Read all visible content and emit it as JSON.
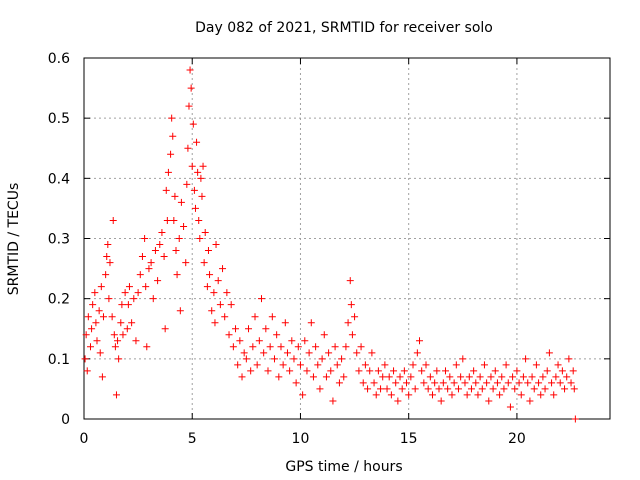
{
  "chart_data": {
    "type": "scatter",
    "title": "Day 082 of 2021, SRMTID for receiver solo",
    "xlabel": "GPS time / hours",
    "ylabel": "SRMTID / TECUs",
    "xlim": [
      0,
      24.3
    ],
    "ylim": [
      0,
      0.6
    ],
    "x_ticks": [
      0,
      5,
      10,
      15,
      20
    ],
    "x_tick_labels": [
      "0",
      "5",
      "10",
      "15",
      "20"
    ],
    "y_ticks": [
      0,
      0.1,
      0.2,
      0.3,
      0.4,
      0.5,
      0.6
    ],
    "y_tick_labels": [
      "0",
      "0.1",
      "0.2",
      "0.3",
      "0.4",
      "0.5",
      "0.6"
    ],
    "grid": true,
    "marker": "plus",
    "color": "#ff0000",
    "series": [
      {
        "name": "SRMTID",
        "points": [
          [
            0.05,
            0.1
          ],
          [
            0.1,
            0.14
          ],
          [
            0.15,
            0.08
          ],
          [
            0.2,
            0.17
          ],
          [
            0.3,
            0.12
          ],
          [
            0.35,
            0.15
          ],
          [
            0.4,
            0.19
          ],
          [
            0.5,
            0.21
          ],
          [
            0.55,
            0.16
          ],
          [
            0.6,
            0.13
          ],
          [
            0.7,
            0.18
          ],
          [
            0.75,
            0.11
          ],
          [
            0.8,
            0.22
          ],
          [
            0.85,
            0.07
          ],
          [
            0.9,
            0.17
          ],
          [
            1.0,
            0.24
          ],
          [
            1.05,
            0.27
          ],
          [
            1.1,
            0.29
          ],
          [
            1.15,
            0.2
          ],
          [
            1.2,
            0.26
          ],
          [
            1.3,
            0.17
          ],
          [
            1.35,
            0.33
          ],
          [
            1.4,
            0.14
          ],
          [
            1.45,
            0.12
          ],
          [
            1.5,
            0.04
          ],
          [
            1.55,
            0.13
          ],
          [
            1.6,
            0.1
          ],
          [
            1.7,
            0.16
          ],
          [
            1.75,
            0.19
          ],
          [
            1.8,
            0.14
          ],
          [
            1.9,
            0.21
          ],
          [
            2.0,
            0.15
          ],
          [
            2.05,
            0.19
          ],
          [
            2.1,
            0.22
          ],
          [
            2.2,
            0.16
          ],
          [
            2.3,
            0.2
          ],
          [
            2.4,
            0.13
          ],
          [
            2.5,
            0.21
          ],
          [
            2.6,
            0.24
          ],
          [
            2.7,
            0.27
          ],
          [
            2.8,
            0.3
          ],
          [
            2.85,
            0.22
          ],
          [
            2.9,
            0.12
          ],
          [
            3.0,
            0.25
          ],
          [
            3.1,
            0.26
          ],
          [
            3.2,
            0.2
          ],
          [
            3.3,
            0.28
          ],
          [
            3.4,
            0.23
          ],
          [
            3.5,
            0.29
          ],
          [
            3.6,
            0.31
          ],
          [
            3.7,
            0.27
          ],
          [
            3.75,
            0.15
          ],
          [
            3.8,
            0.38
          ],
          [
            3.85,
            0.33
          ],
          [
            3.9,
            0.41
          ],
          [
            4.0,
            0.44
          ],
          [
            4.05,
            0.5
          ],
          [
            4.1,
            0.47
          ],
          [
            4.15,
            0.33
          ],
          [
            4.2,
            0.37
          ],
          [
            4.25,
            0.28
          ],
          [
            4.3,
            0.24
          ],
          [
            4.4,
            0.3
          ],
          [
            4.45,
            0.18
          ],
          [
            4.5,
            0.36
          ],
          [
            4.6,
            0.32
          ],
          [
            4.7,
            0.26
          ],
          [
            4.75,
            0.39
          ],
          [
            4.8,
            0.45
          ],
          [
            4.85,
            0.52
          ],
          [
            4.9,
            0.58
          ],
          [
            4.95,
            0.55
          ],
          [
            5.0,
            0.42
          ],
          [
            5.05,
            0.49
          ],
          [
            5.1,
            0.38
          ],
          [
            5.15,
            0.35
          ],
          [
            5.2,
            0.46
          ],
          [
            5.25,
            0.41
          ],
          [
            5.3,
            0.33
          ],
          [
            5.35,
            0.3
          ],
          [
            5.4,
            0.4
          ],
          [
            5.45,
            0.37
          ],
          [
            5.5,
            0.42
          ],
          [
            5.55,
            0.26
          ],
          [
            5.6,
            0.31
          ],
          [
            5.7,
            0.22
          ],
          [
            5.75,
            0.28
          ],
          [
            5.8,
            0.24
          ],
          [
            5.9,
            0.18
          ],
          [
            6.0,
            0.21
          ],
          [
            6.05,
            0.16
          ],
          [
            6.1,
            0.29
          ],
          [
            6.2,
            0.23
          ],
          [
            6.3,
            0.19
          ],
          [
            6.4,
            0.25
          ],
          [
            6.5,
            0.17
          ],
          [
            6.6,
            0.21
          ],
          [
            6.7,
            0.14
          ],
          [
            6.8,
            0.19
          ],
          [
            6.9,
            0.12
          ],
          [
            7.0,
            0.15
          ],
          [
            7.1,
            0.09
          ],
          [
            7.2,
            0.13
          ],
          [
            7.3,
            0.07
          ],
          [
            7.4,
            0.11
          ],
          [
            7.5,
            0.1
          ],
          [
            7.6,
            0.15
          ],
          [
            7.7,
            0.08
          ],
          [
            7.8,
            0.12
          ],
          [
            7.9,
            0.17
          ],
          [
            8.0,
            0.09
          ],
          [
            8.1,
            0.13
          ],
          [
            8.2,
            0.2
          ],
          [
            8.3,
            0.11
          ],
          [
            8.4,
            0.15
          ],
          [
            8.5,
            0.08
          ],
          [
            8.6,
            0.12
          ],
          [
            8.7,
            0.17
          ],
          [
            8.8,
            0.1
          ],
          [
            8.9,
            0.14
          ],
          [
            9.0,
            0.07
          ],
          [
            9.1,
            0.12
          ],
          [
            9.2,
            0.09
          ],
          [
            9.3,
            0.16
          ],
          [
            9.4,
            0.11
          ],
          [
            9.5,
            0.08
          ],
          [
            9.6,
            0.13
          ],
          [
            9.7,
            0.1
          ],
          [
            9.8,
            0.06
          ],
          [
            9.9,
            0.12
          ],
          [
            10.0,
            0.09
          ],
          [
            10.1,
            0.04
          ],
          [
            10.2,
            0.13
          ],
          [
            10.3,
            0.08
          ],
          [
            10.4,
            0.11
          ],
          [
            10.5,
            0.16
          ],
          [
            10.6,
            0.07
          ],
          [
            10.7,
            0.12
          ],
          [
            10.8,
            0.09
          ],
          [
            10.9,
            0.05
          ],
          [
            11.0,
            0.1
          ],
          [
            11.1,
            0.14
          ],
          [
            11.2,
            0.07
          ],
          [
            11.3,
            0.11
          ],
          [
            11.4,
            0.08
          ],
          [
            11.5,
            0.03
          ],
          [
            11.6,
            0.12
          ],
          [
            11.7,
            0.09
          ],
          [
            11.8,
            0.06
          ],
          [
            11.9,
            0.1
          ],
          [
            12.0,
            0.07
          ],
          [
            12.1,
            0.12
          ],
          [
            12.2,
            0.16
          ],
          [
            12.3,
            0.23
          ],
          [
            12.35,
            0.19
          ],
          [
            12.4,
            0.14
          ],
          [
            12.5,
            0.17
          ],
          [
            12.6,
            0.11
          ],
          [
            12.7,
            0.08
          ],
          [
            12.8,
            0.12
          ],
          [
            12.9,
            0.06
          ],
          [
            13.0,
            0.09
          ],
          [
            13.1,
            0.05
          ],
          [
            13.2,
            0.08
          ],
          [
            13.3,
            0.11
          ],
          [
            13.4,
            0.06
          ],
          [
            13.5,
            0.04
          ],
          [
            13.6,
            0.08
          ],
          [
            13.7,
            0.05
          ],
          [
            13.8,
            0.07
          ],
          [
            13.9,
            0.09
          ],
          [
            14.0,
            0.05
          ],
          [
            14.1,
            0.07
          ],
          [
            14.2,
            0.04
          ],
          [
            14.3,
            0.08
          ],
          [
            14.4,
            0.06
          ],
          [
            14.5,
            0.03
          ],
          [
            14.6,
            0.07
          ],
          [
            14.7,
            0.05
          ],
          [
            14.8,
            0.08
          ],
          [
            14.9,
            0.06
          ],
          [
            15.0,
            0.04
          ],
          [
            15.1,
            0.07
          ],
          [
            15.2,
            0.09
          ],
          [
            15.3,
            0.05
          ],
          [
            15.4,
            0.11
          ],
          [
            15.5,
            0.13
          ],
          [
            15.6,
            0.08
          ],
          [
            15.7,
            0.06
          ],
          [
            15.8,
            0.09
          ],
          [
            15.9,
            0.05
          ],
          [
            16.0,
            0.07
          ],
          [
            16.1,
            0.04
          ],
          [
            16.2,
            0.06
          ],
          [
            16.3,
            0.08
          ],
          [
            16.4,
            0.05
          ],
          [
            16.5,
            0.03
          ],
          [
            16.6,
            0.06
          ],
          [
            16.7,
            0.08
          ],
          [
            16.8,
            0.05
          ],
          [
            16.9,
            0.07
          ],
          [
            17.0,
            0.04
          ],
          [
            17.1,
            0.06
          ],
          [
            17.2,
            0.09
          ],
          [
            17.3,
            0.05
          ],
          [
            17.4,
            0.07
          ],
          [
            17.5,
            0.1
          ],
          [
            17.6,
            0.06
          ],
          [
            17.7,
            0.04
          ],
          [
            17.8,
            0.07
          ],
          [
            17.9,
            0.05
          ],
          [
            18.0,
            0.08
          ],
          [
            18.1,
            0.06
          ],
          [
            18.2,
            0.04
          ],
          [
            18.3,
            0.07
          ],
          [
            18.4,
            0.05
          ],
          [
            18.5,
            0.09
          ],
          [
            18.6,
            0.06
          ],
          [
            18.7,
            0.03
          ],
          [
            18.8,
            0.07
          ],
          [
            18.9,
            0.05
          ],
          [
            19.0,
            0.08
          ],
          [
            19.1,
            0.06
          ],
          [
            19.2,
            0.04
          ],
          [
            19.3,
            0.07
          ],
          [
            19.4,
            0.05
          ],
          [
            19.5,
            0.09
          ],
          [
            19.6,
            0.06
          ],
          [
            19.7,
            0.02
          ],
          [
            19.8,
            0.07
          ],
          [
            19.9,
            0.05
          ],
          [
            20.0,
            0.08
          ],
          [
            20.1,
            0.06
          ],
          [
            20.2,
            0.04
          ],
          [
            20.3,
            0.07
          ],
          [
            20.4,
            0.1
          ],
          [
            20.5,
            0.06
          ],
          [
            20.6,
            0.03
          ],
          [
            20.7,
            0.07
          ],
          [
            20.8,
            0.05
          ],
          [
            20.9,
            0.09
          ],
          [
            21.0,
            0.06
          ],
          [
            21.1,
            0.04
          ],
          [
            21.2,
            0.07
          ],
          [
            21.3,
            0.05
          ],
          [
            21.4,
            0.08
          ],
          [
            21.5,
            0.11
          ],
          [
            21.6,
            0.06
          ],
          [
            21.7,
            0.04
          ],
          [
            21.8,
            0.07
          ],
          [
            21.9,
            0.09
          ],
          [
            22.0,
            0.06
          ],
          [
            22.1,
            0.08
          ],
          [
            22.2,
            0.05
          ],
          [
            22.3,
            0.07
          ],
          [
            22.4,
            0.1
          ],
          [
            22.5,
            0.06
          ],
          [
            22.6,
            0.08
          ],
          [
            22.65,
            0.05
          ],
          [
            22.7,
            0.0
          ]
        ]
      }
    ]
  }
}
